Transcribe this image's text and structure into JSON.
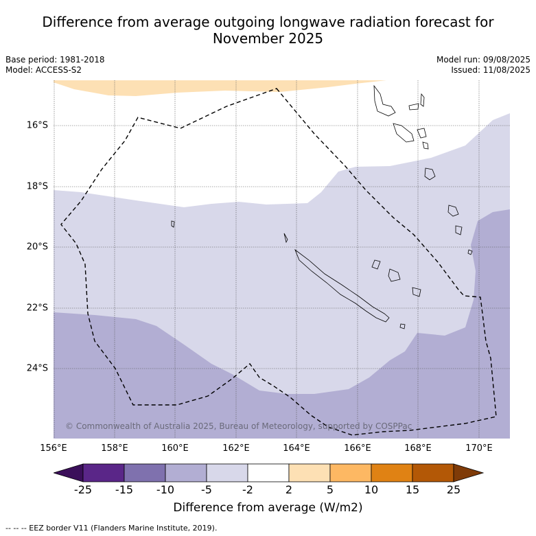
{
  "title_line1": "Difference from average outgoing longwave radiation forecast for",
  "title_line2": "November 2025",
  "meta": {
    "base_period": "Base period: 1981-2018",
    "model": "Model: ACCESS-S2",
    "model_run": "Model run: 09/08/2025",
    "issued": "Issued: 11/08/2025"
  },
  "map": {
    "copyright": "© Commonwealth of Australia 2025, Bureau of Meteorology, supported by COSPPac",
    "x_ticks": [
      "156°E",
      "158°E",
      "160°E",
      "162°E",
      "164°E",
      "166°E",
      "168°E",
      "170°E"
    ],
    "y_ticks": [
      "16°S",
      "18°S",
      "20°S",
      "22°S",
      "24°S"
    ],
    "colors": {
      "light_orange": "#fde0b4",
      "lightest_purple": "#d8d8ea",
      "light_purple": "#b2aed3",
      "land_outline": "#000000",
      "eez_border": "#000000"
    }
  },
  "colorbar": {
    "ticks": [
      "-25",
      "-15",
      "-10",
      "-5",
      "-2",
      "2",
      "5",
      "10",
      "15",
      "25"
    ],
    "colors": [
      "#3b0f5a",
      "#5a2688",
      "#7f71ae",
      "#b2aed3",
      "#d8d8ea",
      "#ffffff",
      "#fde0b4",
      "#fdb863",
      "#e08214",
      "#b35806",
      "#7f3b08"
    ],
    "label": "Difference from average (W/m2)"
  },
  "footnote": "--  --  -- EEZ border V11 (Flanders Marine Institute, 2019)."
}
